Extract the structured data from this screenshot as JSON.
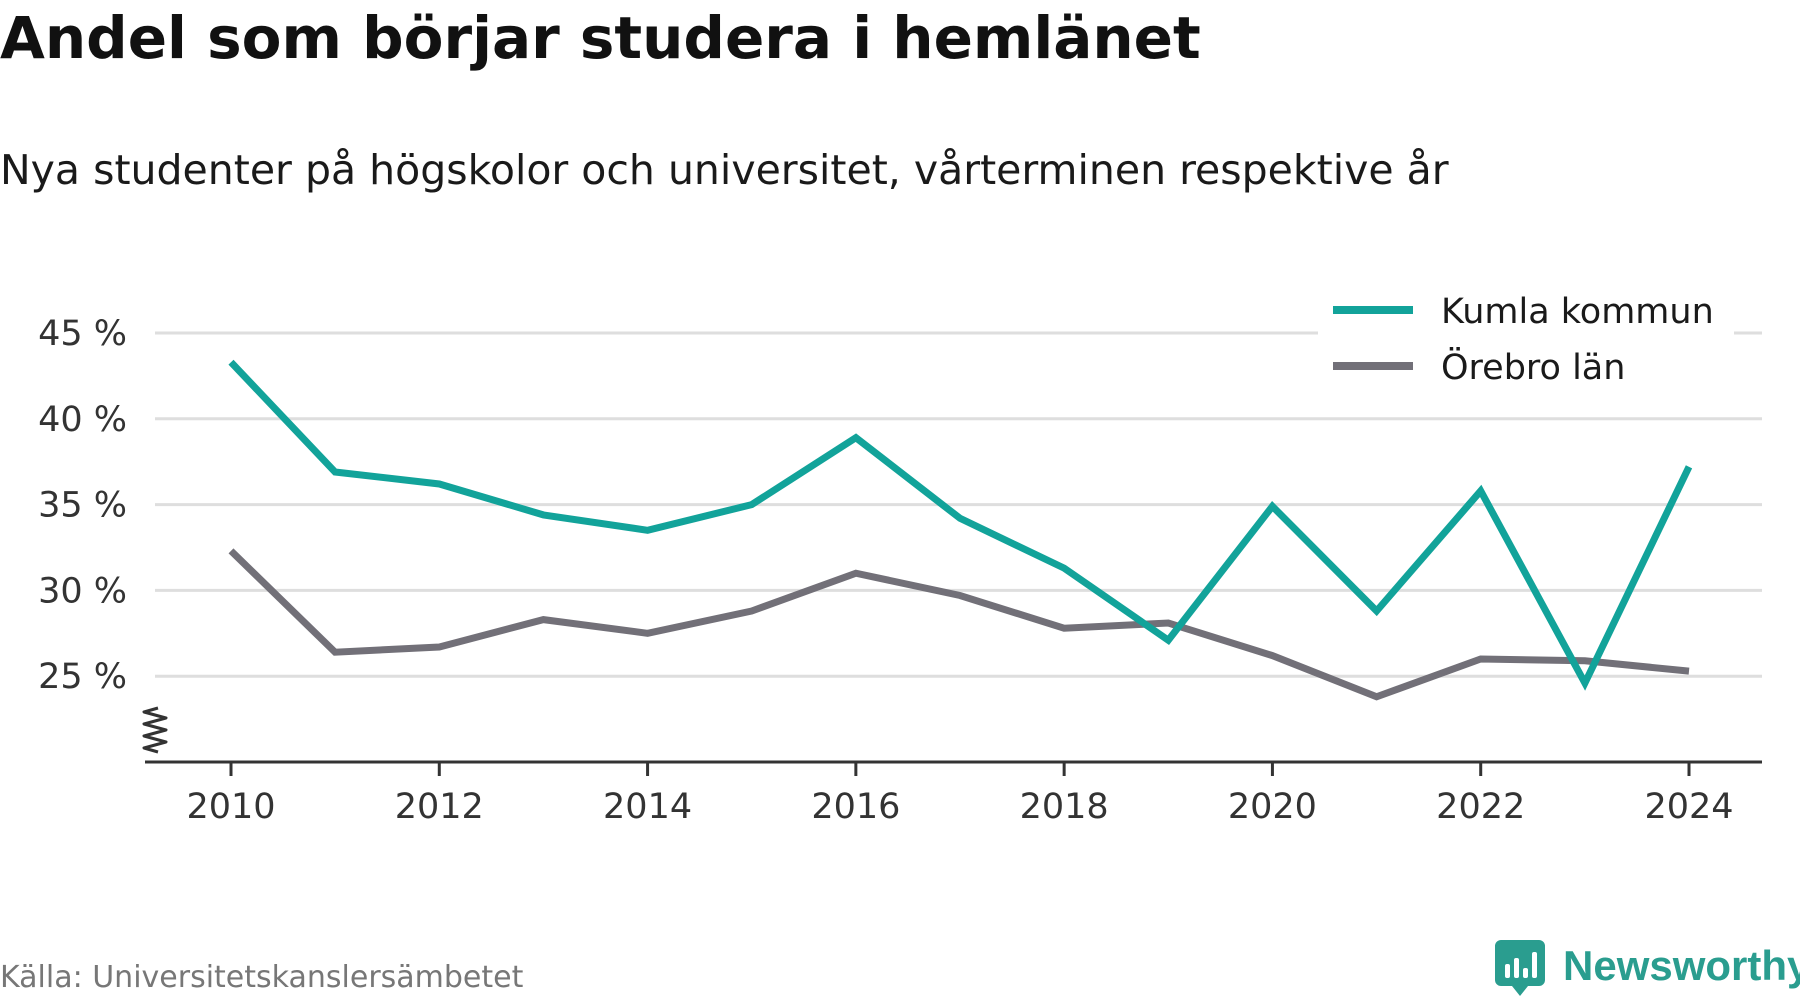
{
  "chart_data": {
    "type": "line",
    "title": "Andel som börjar studera i hemlänet",
    "subtitle": "Nya studenter på högskolor och universitet, vårterminen respektive år",
    "x": [
      2010,
      2011,
      2012,
      2013,
      2014,
      2015,
      2016,
      2017,
      2018,
      2019,
      2020,
      2021,
      2022,
      2023,
      2024
    ],
    "x_ticks": [
      "2010",
      "2012",
      "2014",
      "2016",
      "2018",
      "2020",
      "2022",
      "2024"
    ],
    "y_ticks": [
      "25 %",
      "30 %",
      "35 %",
      "40 %",
      "45 %"
    ],
    "ylim": [
      20,
      45
    ],
    "grid": "horizontal",
    "legend_position": "top-right",
    "series": [
      {
        "name": "Kumla kommun",
        "color": "#12a39a",
        "values": [
          43.3,
          36.9,
          36.2,
          34.4,
          33.5,
          35.0,
          38.9,
          34.2,
          31.3,
          27.1,
          34.9,
          28.8,
          35.8,
          24.6,
          37.2
        ]
      },
      {
        "name": "Örebro län",
        "color": "#727078",
        "values": [
          32.3,
          26.4,
          26.7,
          28.3,
          27.5,
          28.8,
          31.0,
          29.7,
          27.8,
          28.1,
          26.2,
          23.8,
          26.0,
          25.9,
          25.3
        ]
      }
    ]
  },
  "source": "Källa: Universitetskanslersämbetet",
  "brand": {
    "name": "Newsworthy",
    "icon": "newsworthy-logo-icon",
    "color": "#2a9d8f"
  }
}
